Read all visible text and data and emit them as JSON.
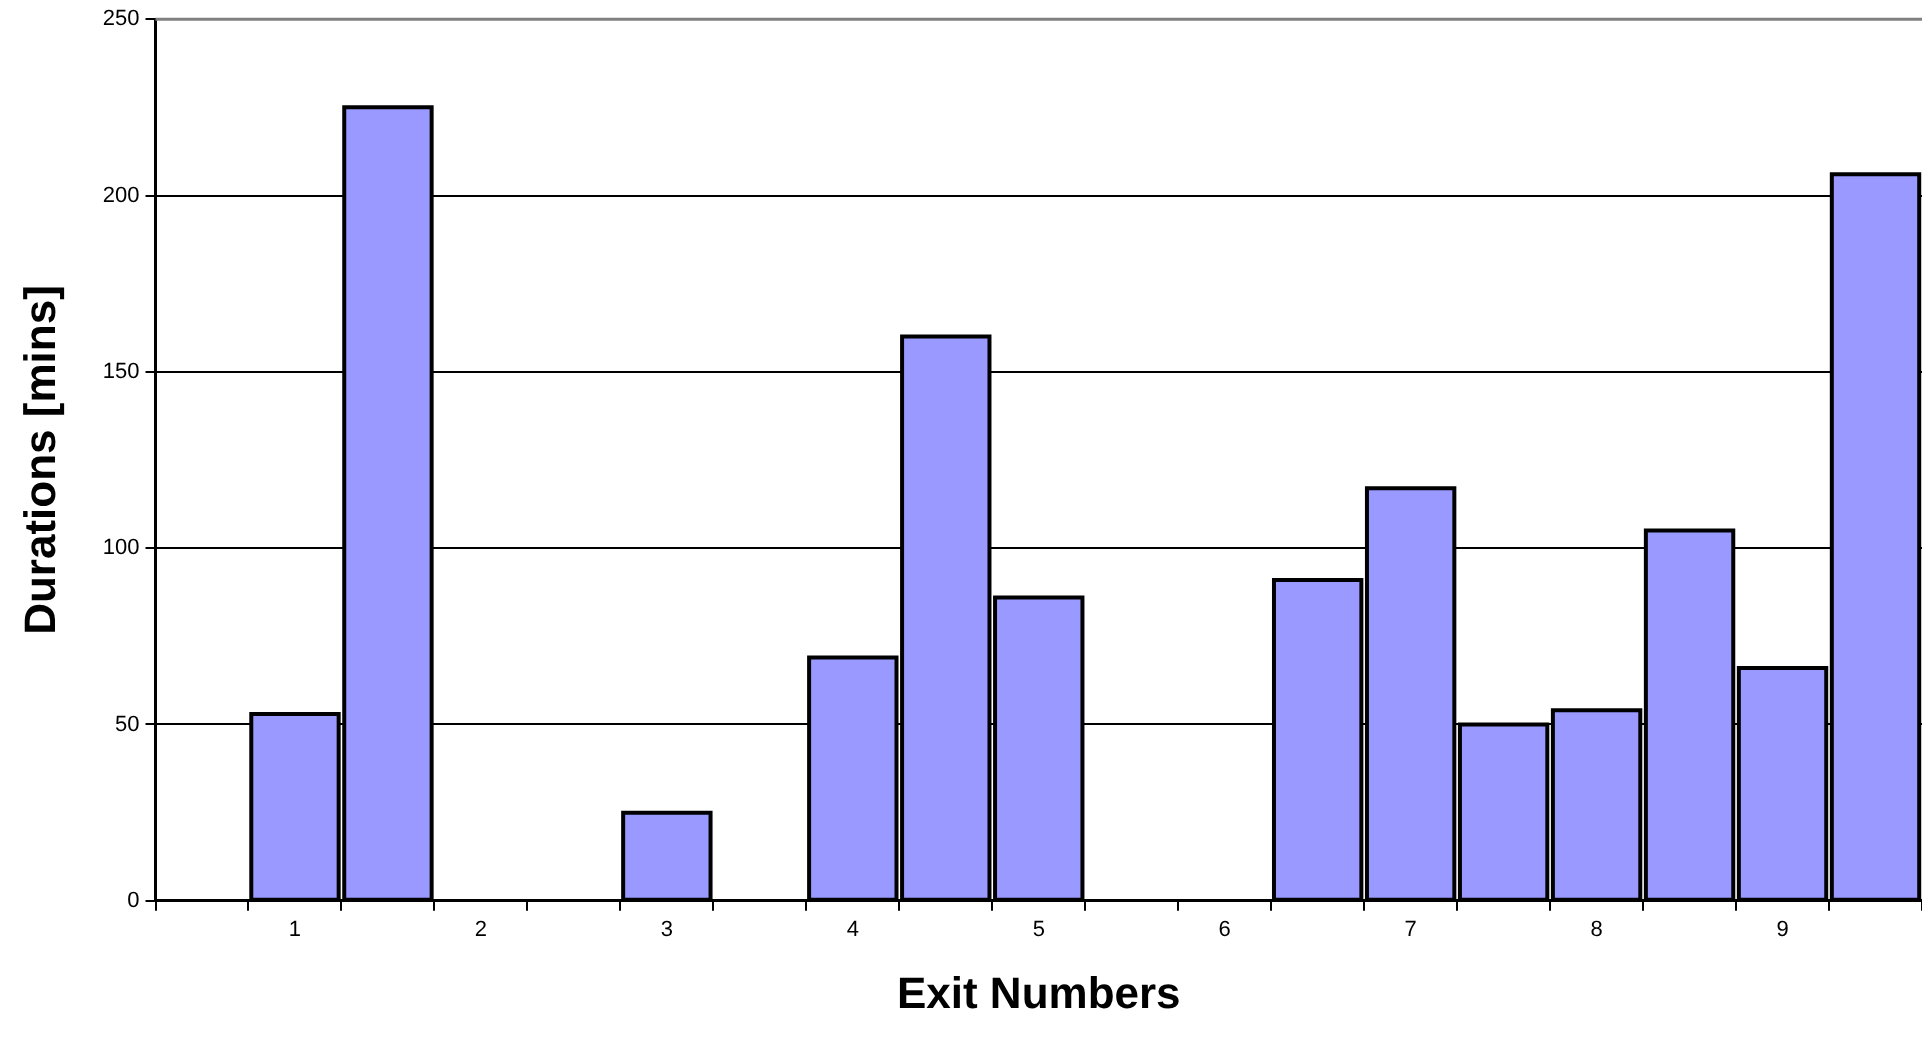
{
  "chart_data": {
    "type": "bar",
    "xlabel": "Exit Numbers",
    "ylabel": "Durations [mins]",
    "categories": [
      null,
      "1",
      null,
      "2",
      null,
      "3",
      null,
      "4",
      null,
      "5",
      null,
      "6",
      null,
      "7",
      null,
      "8",
      null,
      "9",
      null
    ],
    "values": [
      null,
      53,
      225,
      null,
      null,
      25,
      null,
      69,
      160,
      86,
      null,
      null,
      91,
      117,
      50,
      54,
      105,
      66,
      206
    ],
    "color": "#9999ff",
    "ylim": [
      0,
      250
    ],
    "yticks": [
      0,
      50,
      100,
      150,
      200,
      250
    ],
    "grid": "y",
    "legend": false
  }
}
